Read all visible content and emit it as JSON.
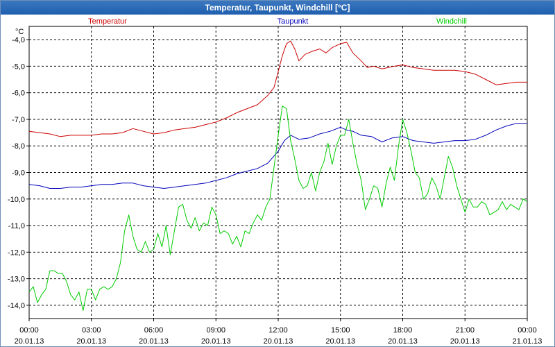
{
  "window": {
    "title": "Temperatur, Taupunkt, Windchill [°C]"
  },
  "chart_data": {
    "type": "line",
    "title": "Temperatur, Taupunkt, Windchill [°C]",
    "ylabel": "°C",
    "ylim": [
      -14.5,
      -3.5
    ],
    "yticks": [
      -4,
      -5,
      -6,
      -7,
      -8,
      -9,
      -10,
      -11,
      -12,
      -13,
      -14
    ],
    "ytick_labels": [
      "-4,0",
      "-5,0",
      "-6,0",
      "-7,0",
      "-8,0",
      "-9,0",
      "-10,0",
      "-11,0",
      "-12,0",
      "-13,0",
      "-14,0"
    ],
    "xlim": [
      0,
      24
    ],
    "xticks": [
      0,
      3,
      6,
      9,
      12,
      15,
      18,
      21,
      24
    ],
    "xtick_times": [
      "00:00",
      "03:00",
      "06:00",
      "09:00",
      "12:00",
      "15:00",
      "18:00",
      "21:00",
      "00:00"
    ],
    "xtick_dates": [
      "20.01.13",
      "20.01.13",
      "20.01.13",
      "20.01.13",
      "20.01.13",
      "20.01.13",
      "20.01.13",
      "20.01.13",
      "21.01.13"
    ],
    "grid": true,
    "series": [
      {
        "name": "Temperatur",
        "color": "#cc0000",
        "x": [
          0,
          0.5,
          1,
          1.5,
          2,
          2.5,
          3,
          3.5,
          4,
          4.5,
          5,
          5.5,
          6,
          6.5,
          7,
          7.5,
          8,
          8.5,
          9,
          9.5,
          10,
          10.5,
          11,
          11.5,
          11.8,
          12,
          12.2,
          12.4,
          12.6,
          12.8,
          13,
          13.3,
          13.6,
          14,
          14.3,
          14.6,
          15,
          15.3,
          15.6,
          16,
          16.3,
          16.6,
          17,
          17.3,
          17.6,
          18,
          18.5,
          19,
          19.5,
          20,
          20.5,
          21,
          21.5,
          22,
          22.5,
          23,
          23.5,
          24
        ],
        "values": [
          -7.45,
          -7.5,
          -7.55,
          -7.65,
          -7.6,
          -7.6,
          -7.6,
          -7.55,
          -7.55,
          -7.5,
          -7.35,
          -7.45,
          -7.55,
          -7.5,
          -7.4,
          -7.35,
          -7.3,
          -7.2,
          -7.1,
          -6.95,
          -6.75,
          -6.6,
          -6.45,
          -6.1,
          -5.8,
          -5.2,
          -4.6,
          -4.15,
          -4.05,
          -4.35,
          -4.8,
          -4.55,
          -4.45,
          -4.35,
          -4.5,
          -4.3,
          -4.15,
          -4.1,
          -4.5,
          -4.8,
          -5.05,
          -5.0,
          -5.1,
          -5.05,
          -5.0,
          -4.95,
          -5.05,
          -5.1,
          -5.15,
          -5.15,
          -5.15,
          -5.2,
          -5.3,
          -5.5,
          -5.7,
          -5.65,
          -5.6,
          -5.6
        ]
      },
      {
        "name": "Taupunkt",
        "color": "#0000bb",
        "x": [
          0,
          0.5,
          1,
          1.5,
          2,
          2.5,
          3,
          3.5,
          4,
          4.5,
          5,
          5.5,
          6,
          6.5,
          7,
          7.5,
          8,
          8.5,
          9,
          9.5,
          10,
          10.5,
          11,
          11.5,
          12,
          12.3,
          12.6,
          13,
          13.5,
          14,
          14.5,
          15,
          15.3,
          15.6,
          16,
          16.5,
          17,
          17.5,
          18,
          18.5,
          19,
          19.5,
          20,
          20.5,
          21,
          21.5,
          22,
          22.5,
          23,
          23.5,
          24
        ],
        "values": [
          -9.45,
          -9.5,
          -9.6,
          -9.6,
          -9.55,
          -9.55,
          -9.5,
          -9.45,
          -9.45,
          -9.4,
          -9.4,
          -9.5,
          -9.55,
          -9.6,
          -9.55,
          -9.5,
          -9.45,
          -9.4,
          -9.3,
          -9.2,
          -9.05,
          -8.95,
          -8.85,
          -8.65,
          -8.2,
          -7.8,
          -7.6,
          -7.75,
          -7.7,
          -7.55,
          -7.45,
          -7.3,
          -7.4,
          -7.45,
          -7.6,
          -7.65,
          -7.85,
          -7.7,
          -7.65,
          -7.8,
          -7.85,
          -7.9,
          -7.85,
          -7.8,
          -7.8,
          -7.75,
          -7.6,
          -7.4,
          -7.25,
          -7.15,
          -7.15
        ]
      },
      {
        "name": "Windchill",
        "color": "#00cc00",
        "x": [
          0,
          0.2,
          0.4,
          0.6,
          0.8,
          1,
          1.2,
          1.4,
          1.6,
          1.8,
          2,
          2.2,
          2.4,
          2.6,
          2.8,
          3,
          3.2,
          3.4,
          3.6,
          3.8,
          4,
          4.2,
          4.4,
          4.6,
          4.8,
          5,
          5.2,
          5.4,
          5.6,
          5.8,
          6,
          6.2,
          6.4,
          6.6,
          6.8,
          7,
          7.2,
          7.4,
          7.6,
          7.8,
          8,
          8.2,
          8.4,
          8.6,
          8.8,
          9,
          9.2,
          9.4,
          9.6,
          9.8,
          10,
          10.2,
          10.4,
          10.6,
          10.8,
          11,
          11.2,
          11.4,
          11.6,
          11.8,
          12,
          12.2,
          12.4,
          12.6,
          12.8,
          13,
          13.2,
          13.4,
          13.6,
          13.8,
          14,
          14.2,
          14.4,
          14.6,
          14.8,
          15,
          15.2,
          15.4,
          15.6,
          15.8,
          16,
          16.2,
          16.4,
          16.6,
          16.8,
          17,
          17.2,
          17.4,
          17.6,
          17.8,
          18,
          18.2,
          18.4,
          18.6,
          18.8,
          19,
          19.2,
          19.4,
          19.6,
          19.8,
          20,
          20.2,
          20.4,
          20.6,
          20.8,
          21,
          21.2,
          21.4,
          21.6,
          21.8,
          22,
          22.2,
          22.4,
          22.6,
          22.8,
          23,
          23.2,
          23.4,
          23.6,
          23.8,
          24
        ],
        "values": [
          -13.5,
          -13.3,
          -13.9,
          -13.6,
          -13.4,
          -12.7,
          -12.7,
          -12.8,
          -12.8,
          -13.1,
          -13.6,
          -13.8,
          -13.5,
          -14.2,
          -13.4,
          -13.4,
          -13.8,
          -13.4,
          -13.3,
          -13.4,
          -13.3,
          -13.0,
          -12.4,
          -11.2,
          -10.6,
          -11.4,
          -11.9,
          -12.0,
          -11.6,
          -12.0,
          -11.9,
          -11.3,
          -11.8,
          -11.0,
          -12.1,
          -11.2,
          -10.3,
          -10.2,
          -10.8,
          -11.1,
          -10.7,
          -11.2,
          -10.9,
          -11.0,
          -10.3,
          -10.6,
          -11.3,
          -11.2,
          -11.3,
          -11.7,
          -11.4,
          -11.8,
          -11.2,
          -11.3,
          -10.9,
          -10.6,
          -10.8,
          -10.3,
          -10.0,
          -8.8,
          -7.6,
          -6.5,
          -6.6,
          -7.8,
          -8.5,
          -9.3,
          -9.6,
          -9.5,
          -9.0,
          -9.7,
          -9.0,
          -8.6,
          -7.9,
          -8.7,
          -8.0,
          -7.6,
          -7.6,
          -7.0,
          -7.9,
          -8.7,
          -9.3,
          -10.4,
          -10.0,
          -9.5,
          -9.6,
          -10.3,
          -9.4,
          -8.8,
          -9.3,
          -8.0,
          -7.0,
          -7.5,
          -8.2,
          -9.0,
          -9.2,
          -10.0,
          -9.8,
          -9.2,
          -9.5,
          -10.0,
          -9.2,
          -8.4,
          -8.8,
          -9.5,
          -10.0,
          -10.5,
          -10.0,
          -10.3,
          -10.3,
          -10.1,
          -10.2,
          -10.6,
          -10.5,
          -10.4,
          -10.1,
          -10.4,
          -10.2,
          -10.3,
          -10.4,
          -10.0,
          -10.1
        ]
      }
    ]
  }
}
